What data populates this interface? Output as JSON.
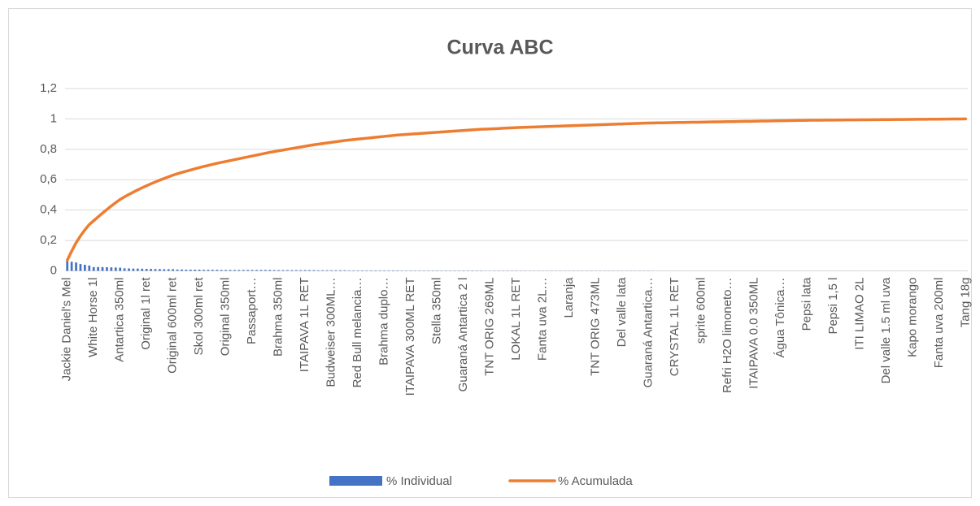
{
  "chart_data": {
    "type": "pareto",
    "title": "Curva ABC",
    "categories": [
      "Jackie Daniel's Mel",
      null,
      null,
      null,
      null,
      null,
      "White Horse 1l",
      null,
      null,
      null,
      null,
      null,
      "Antartica 350ml",
      null,
      null,
      null,
      null,
      null,
      "Original 1l ret",
      null,
      null,
      null,
      null,
      null,
      "Original 600ml ret",
      null,
      null,
      null,
      null,
      null,
      "Skol 300ml ret",
      null,
      null,
      null,
      null,
      null,
      "Original 350ml",
      null,
      null,
      null,
      null,
      null,
      "Passaport…",
      null,
      null,
      null,
      null,
      null,
      "Brahma 350ml",
      null,
      null,
      null,
      null,
      null,
      "ITAIPAVA 1L RET",
      null,
      null,
      null,
      null,
      null,
      "Budweiser 300ML…",
      null,
      null,
      null,
      null,
      null,
      "Red Bull melancia…",
      null,
      null,
      null,
      null,
      null,
      "Brahma duplo…",
      null,
      null,
      null,
      null,
      null,
      "ITAIPAVA 300ML RET",
      null,
      null,
      null,
      null,
      null,
      "Stella 350ml",
      null,
      null,
      null,
      null,
      null,
      "Guaraná Antartica 2 l",
      null,
      null,
      null,
      null,
      null,
      "TNT ORIG 269ML",
      null,
      null,
      null,
      null,
      null,
      "LOKAL 1L RET",
      null,
      null,
      null,
      null,
      null,
      "Fanta uva 2L…",
      null,
      null,
      null,
      null,
      null,
      "Laranja",
      null,
      null,
      null,
      null,
      null,
      "TNT ORIG 473ML",
      null,
      null,
      null,
      null,
      null,
      "Del valle lata",
      null,
      null,
      null,
      null,
      null,
      "Guaraná Antartica…",
      null,
      null,
      null,
      null,
      null,
      "CRYSTAL 1L RET",
      null,
      null,
      null,
      null,
      null,
      "sprite 600ml",
      null,
      null,
      null,
      null,
      null,
      "Refri H2O limoneto…",
      null,
      null,
      null,
      null,
      null,
      "ITAIPAVA 0.0 350ML",
      null,
      null,
      null,
      null,
      null,
      "Água Tônica…",
      null,
      null,
      null,
      null,
      null,
      "Pepsi lata",
      null,
      null,
      null,
      null,
      null,
      "Pepsi 1,5 l",
      null,
      null,
      null,
      null,
      null,
      "ITI LIMAO 2L",
      null,
      null,
      null,
      null,
      null,
      "Del valle 1.5 ml uva",
      null,
      null,
      null,
      null,
      null,
      "Kapo morango",
      null,
      null,
      null,
      null,
      null,
      "Fanta uva 200ml",
      null,
      null,
      null,
      null,
      null,
      "Tang 18g"
    ],
    "series": [
      {
        "name": "% Individual",
        "color": "#4472c4",
        "type": "bar",
        "values": [
          0.07,
          0.06,
          0.055,
          0.045,
          0.04,
          0.035,
          0.025,
          0.025,
          0.025,
          0.024,
          0.023,
          0.022,
          0.021,
          0.017,
          0.016,
          0.015,
          0.015,
          0.014,
          0.013,
          0.013,
          0.012,
          0.012,
          0.011,
          0.011,
          0.011,
          0.009,
          0.009,
          0.008,
          0.008,
          0.008,
          0.008,
          0.007,
          0.007,
          0.007,
          0.007,
          0.006,
          0.006,
          0.006,
          0.006,
          0.006,
          0.006,
          0.006,
          0.006,
          0.006,
          0.006,
          0.006,
          0.006,
          0.005,
          0.005,
          0.005,
          0.005,
          0.005,
          0.005,
          0.005,
          0.005,
          0.005,
          0.005,
          0.004,
          0.004,
          0.004,
          0.004,
          0.004,
          0.004,
          0.004,
          0.003,
          0.003,
          0.003,
          0.003,
          0.003,
          0.003,
          0.003,
          0.003,
          0.003,
          0.003,
          0.003,
          0.003,
          0.002,
          0.002,
          0.002,
          0.002,
          0.002,
          0.002,
          0.002,
          0.002,
          0.002,
          0.002,
          0.002,
          0.002,
          0.002,
          0.002,
          0.002,
          0.002,
          0.002,
          0.002,
          0.002,
          0.001,
          0.001,
          0.0015,
          0.0015,
          0.0015,
          0.0015,
          0.0015,
          0.0015,
          0.001,
          0.001,
          0.001,
          0.001,
          0.001,
          0.001,
          0.001,
          0.001,
          0.001,
          0.001,
          0.001,
          0.001,
          0.001,
          0.001,
          0.001,
          0.001,
          0.001,
          0.001,
          0.001,
          0.001,
          0.001,
          0.001,
          0.001,
          0.001,
          0.001,
          0.001,
          0.001,
          0.001,
          0.001,
          0.001,
          0.0005,
          0.0005,
          0.0005,
          0.0005,
          0.0005,
          0.0005,
          0.0005,
          0.0005,
          0.0005,
          0.0005,
          0.0005,
          0.0005,
          0.0005,
          0.0005,
          0.0005,
          0.0005,
          0.0005,
          0.0005,
          0.0005,
          0.0005,
          0.0005,
          0.0005,
          0.0005,
          0.0005,
          0.0005,
          0.0005,
          0.0005,
          0.0005,
          0.0005,
          0.0005,
          0.0005,
          0.0005,
          0.0005,
          0.0005,
          0.0005,
          0.0005,
          0.00025,
          0.00025,
          0.00025,
          0.00025,
          0.00025,
          0.00025,
          0.00025,
          0.00025,
          0.00025,
          0.00025,
          0.00025,
          0.00025,
          0.00025,
          0.00025,
          0.00025,
          0.00025,
          0.00025,
          0.00025,
          0.00025,
          0.00025,
          0.00025,
          0.00025,
          0.00025,
          0.00025,
          0.00025,
          0.00025,
          0.00025,
          0.00025,
          0.00025,
          0.00025,
          0.00025,
          0.00025,
          0.00025,
          0.00025,
          0.00025,
          0.00025
        ]
      },
      {
        "name": "% Acumulada",
        "color": "#ed7d31",
        "type": "line",
        "values": [
          0.07,
          0.13,
          0.185,
          0.23,
          0.27,
          0.305,
          0.33,
          0.355,
          0.38,
          0.404,
          0.427,
          0.449,
          0.47,
          0.487,
          0.503,
          0.518,
          0.533,
          0.547,
          0.56,
          0.573,
          0.585,
          0.597,
          0.608,
          0.619,
          0.63,
          0.639,
          0.648,
          0.656,
          0.664,
          0.672,
          0.68,
          0.687,
          0.694,
          0.701,
          0.708,
          0.714,
          0.72,
          0.726,
          0.732,
          0.738,
          0.744,
          0.75,
          0.756,
          0.762,
          0.768,
          0.774,
          0.78,
          0.785,
          0.79,
          0.795,
          0.8,
          0.805,
          0.81,
          0.815,
          0.82,
          0.825,
          0.83,
          0.834,
          0.838,
          0.842,
          0.846,
          0.85,
          0.854,
          0.858,
          0.861,
          0.864,
          0.867,
          0.87,
          0.873,
          0.876,
          0.879,
          0.882,
          0.885,
          0.888,
          0.891,
          0.894,
          0.896,
          0.898,
          0.9,
          0.902,
          0.904,
          0.906,
          0.908,
          0.91,
          0.912,
          0.914,
          0.916,
          0.918,
          0.92,
          0.922,
          0.924,
          0.926,
          0.928,
          0.93,
          0.932,
          0.933,
          0.934,
          0.9355,
          0.937,
          0.9385,
          0.94,
          0.9415,
          0.943,
          0.944,
          0.945,
          0.946,
          0.947,
          0.948,
          0.949,
          0.95,
          0.951,
          0.952,
          0.953,
          0.954,
          0.955,
          0.956,
          0.957,
          0.958,
          0.959,
          0.96,
          0.961,
          0.962,
          0.963,
          0.964,
          0.965,
          0.966,
          0.967,
          0.968,
          0.969,
          0.97,
          0.971,
          0.972,
          0.973,
          0.9735,
          0.974,
          0.9745,
          0.975,
          0.9755,
          0.976,
          0.9765,
          0.977,
          0.9775,
          0.978,
          0.9785,
          0.979,
          0.9795,
          0.98,
          0.9805,
          0.981,
          0.9815,
          0.982,
          0.9825,
          0.983,
          0.9835,
          0.984,
          0.9845,
          0.985,
          0.9855,
          0.986,
          0.9865,
          0.987,
          0.9875,
          0.988,
          0.9885,
          0.989,
          0.9895,
          0.99,
          0.9905,
          0.991,
          0.99125,
          0.9915,
          0.99175,
          0.992,
          0.99225,
          0.9925,
          0.99275,
          0.993,
          0.99325,
          0.9935,
          0.99375,
          0.994,
          0.99425,
          0.9945,
          0.99475,
          0.995,
          0.99525,
          0.9955,
          0.99575,
          0.996,
          0.99625,
          0.9965,
          0.99675,
          0.997,
          0.99725,
          0.9975,
          0.99775,
          0.998,
          0.99825,
          0.9985,
          0.99875,
          0.999,
          0.99925,
          0.9995,
          0.99975,
          1
        ]
      }
    ],
    "ylim": [
      0,
      1.2
    ],
    "yticks": [
      0,
      {
        "value": 0.2,
        "label": "0,2"
      },
      {
        "value": 0.4,
        "label": "0,4"
      },
      {
        "value": 0.6,
        "label": "0,6"
      },
      {
        "value": 0.8,
        "label": "0,8"
      },
      1,
      {
        "value": 1.2,
        "label": "1,2"
      }
    ],
    "grid": true,
    "legend": "bottom"
  }
}
